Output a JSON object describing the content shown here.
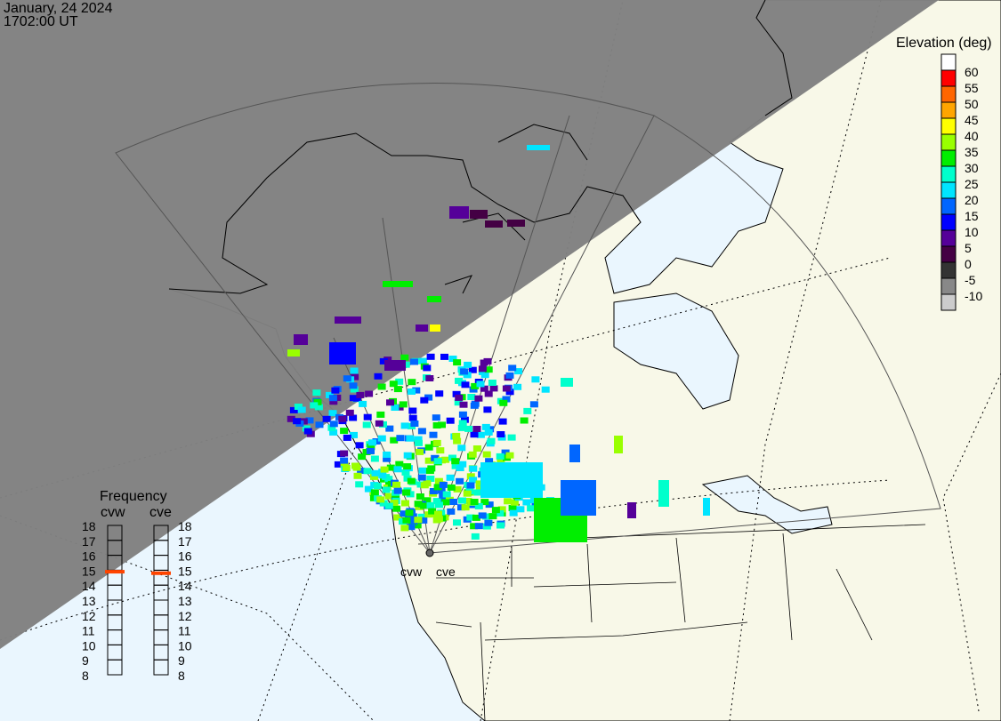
{
  "header": {
    "date": "January, 24 2024",
    "time": "1702:00 UT"
  },
  "elevation_legend": {
    "title": "Elevation (deg)",
    "bins": [
      {
        "label": "60",
        "color": "#ffffff"
      },
      {
        "label": "55",
        "color": "#ff0000"
      },
      {
        "label": "50",
        "color": "#ff6600"
      },
      {
        "label": "45",
        "color": "#ffa500"
      },
      {
        "label": "40",
        "color": "#ffff00"
      },
      {
        "label": "35",
        "color": "#99ff00"
      },
      {
        "label": "30",
        "color": "#00ee00"
      },
      {
        "label": "25",
        "color": "#00ffcc"
      },
      {
        "label": "20",
        "color": "#00e5ff"
      },
      {
        "label": "15",
        "color": "#0066ff"
      },
      {
        "label": "10",
        "color": "#0000ff"
      },
      {
        "label": "5",
        "color": "#550099"
      },
      {
        "label": "0",
        "color": "#440044"
      },
      {
        "label": "-5",
        "color": "#333333"
      },
      {
        "label": "-10",
        "color": "#888888"
      },
      {
        "label": "",
        "color": "#cccccc"
      }
    ]
  },
  "frequency_panel": {
    "title": "Frequency",
    "ticks": [
      "18",
      "17",
      "16",
      "15",
      "14",
      "13",
      "12",
      "11",
      "10",
      "9",
      "8"
    ],
    "radars": [
      {
        "name": "cvw",
        "frequency_mhz": 14.9
      },
      {
        "name": "cve",
        "frequency_mhz": 14.8
      }
    ],
    "marker_color": "#ff4400"
  },
  "radar_labels": [
    "cvw",
    "cve"
  ],
  "colors": {
    "night": "#808080",
    "land": "#f8f8e8",
    "ocean": "#eaf6fe"
  }
}
